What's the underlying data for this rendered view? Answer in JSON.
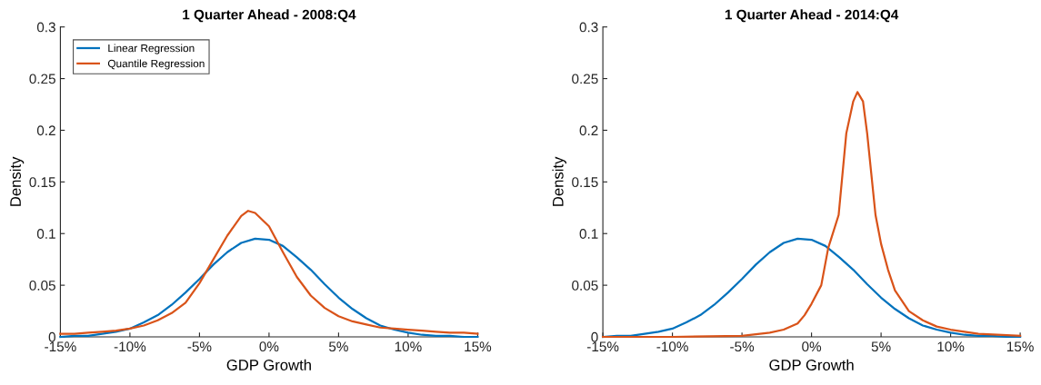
{
  "chart_data": [
    {
      "type": "line",
      "title": "1 Quarter Ahead - 2008:Q4",
      "xlabel": "GDP Growth",
      "ylabel": "Density",
      "legend": "top left",
      "grid": false,
      "xlim": [
        -15,
        15
      ],
      "ylim": [
        0,
        0.3
      ],
      "xticks": [
        {
          "value": -15,
          "label": "-15%"
        },
        {
          "value": -10,
          "label": "-10%"
        },
        {
          "value": -5,
          "label": "-5%"
        },
        {
          "value": 0,
          "label": "0%"
        },
        {
          "value": 5,
          "label": "5%"
        },
        {
          "value": 10,
          "label": "10%"
        },
        {
          "value": 15,
          "label": "15%"
        }
      ],
      "yticks": [
        0,
        0.05,
        0.1,
        0.15,
        0.2,
        0.25,
        0.3
      ],
      "series": [
        {
          "name": "Linear Regression",
          "color": "#0072bd",
          "x": [
            -15,
            -14,
            -13,
            -12,
            -11,
            -10,
            -9,
            -8,
            -7,
            -6,
            -5,
            -4,
            -3,
            -2,
            -1,
            0,
            1,
            2,
            3,
            4,
            5,
            6,
            7,
            8,
            9,
            10,
            11,
            12,
            13,
            14,
            15
          ],
          "values": [
            0.0,
            0.001,
            0.001,
            0.003,
            0.005,
            0.008,
            0.014,
            0.021,
            0.031,
            0.043,
            0.056,
            0.07,
            0.082,
            0.091,
            0.095,
            0.094,
            0.088,
            0.077,
            0.065,
            0.051,
            0.038,
            0.027,
            0.018,
            0.011,
            0.007,
            0.004,
            0.002,
            0.001,
            0.001,
            0.0,
            0.0
          ]
        },
        {
          "name": "Quantile Regression",
          "color": "#d95319",
          "x": [
            -15,
            -14,
            -13,
            -12,
            -11,
            -10,
            -9,
            -8,
            -7,
            -6,
            -5,
            -4,
            -3,
            -2,
            -1.5,
            -1,
            0,
            1,
            2,
            3,
            4,
            5,
            6,
            7,
            8,
            9,
            10,
            11,
            12,
            13,
            14,
            15
          ],
          "values": [
            0.003,
            0.003,
            0.004,
            0.005,
            0.006,
            0.008,
            0.011,
            0.016,
            0.023,
            0.033,
            0.052,
            0.075,
            0.098,
            0.117,
            0.122,
            0.12,
            0.107,
            0.082,
            0.058,
            0.04,
            0.028,
            0.02,
            0.015,
            0.012,
            0.009,
            0.008,
            0.007,
            0.006,
            0.005,
            0.004,
            0.004,
            0.003
          ]
        }
      ]
    },
    {
      "type": "line",
      "title": "1 Quarter Ahead - 2014:Q4",
      "xlabel": "GDP Growth",
      "ylabel": "Density",
      "legend": false,
      "grid": false,
      "xlim": [
        -15,
        15
      ],
      "ylim": [
        0,
        0.3
      ],
      "xticks": [
        {
          "value": -15,
          "label": "-15%"
        },
        {
          "value": -10,
          "label": "-10%"
        },
        {
          "value": -5,
          "label": "-5%"
        },
        {
          "value": 0,
          "label": "0%"
        },
        {
          "value": 5,
          "label": "5%"
        },
        {
          "value": 10,
          "label": "10%"
        },
        {
          "value": 15,
          "label": "15%"
        }
      ],
      "yticks": [
        0,
        0.05,
        0.1,
        0.15,
        0.2,
        0.25,
        0.3
      ],
      "series": [
        {
          "color": "#0072bd",
          "x": [
            -15,
            -14,
            -13,
            -12,
            -11,
            -10,
            -9,
            -8,
            -7,
            -6,
            -5,
            -4,
            -3,
            -2,
            -1,
            0,
            1,
            2,
            3,
            4,
            5,
            6,
            7,
            8,
            9,
            10,
            11,
            12,
            13,
            14,
            15
          ],
          "values": [
            0.0,
            0.001,
            0.001,
            0.003,
            0.005,
            0.008,
            0.014,
            0.021,
            0.031,
            0.043,
            0.056,
            0.07,
            0.082,
            0.091,
            0.095,
            0.094,
            0.088,
            0.077,
            0.065,
            0.051,
            0.038,
            0.027,
            0.018,
            0.011,
            0.007,
            0.004,
            0.002,
            0.001,
            0.001,
            0.0,
            0.0
          ]
        },
        {
          "color": "#d95319",
          "x": [
            -15,
            -10,
            -5,
            -3,
            -2,
            -1,
            -0.5,
            0,
            0.7,
            1.2,
            1.95,
            2.5,
            3,
            3.3,
            3.7,
            4,
            4.6,
            5,
            5.5,
            6,
            7,
            8,
            9,
            10,
            12,
            15
          ],
          "values": [
            0.0,
            0.0,
            0.001,
            0.004,
            0.007,
            0.013,
            0.021,
            0.032,
            0.05,
            0.086,
            0.118,
            0.197,
            0.228,
            0.237,
            0.228,
            0.197,
            0.118,
            0.09,
            0.065,
            0.045,
            0.025,
            0.016,
            0.01,
            0.007,
            0.003,
            0.001
          ]
        }
      ]
    }
  ]
}
